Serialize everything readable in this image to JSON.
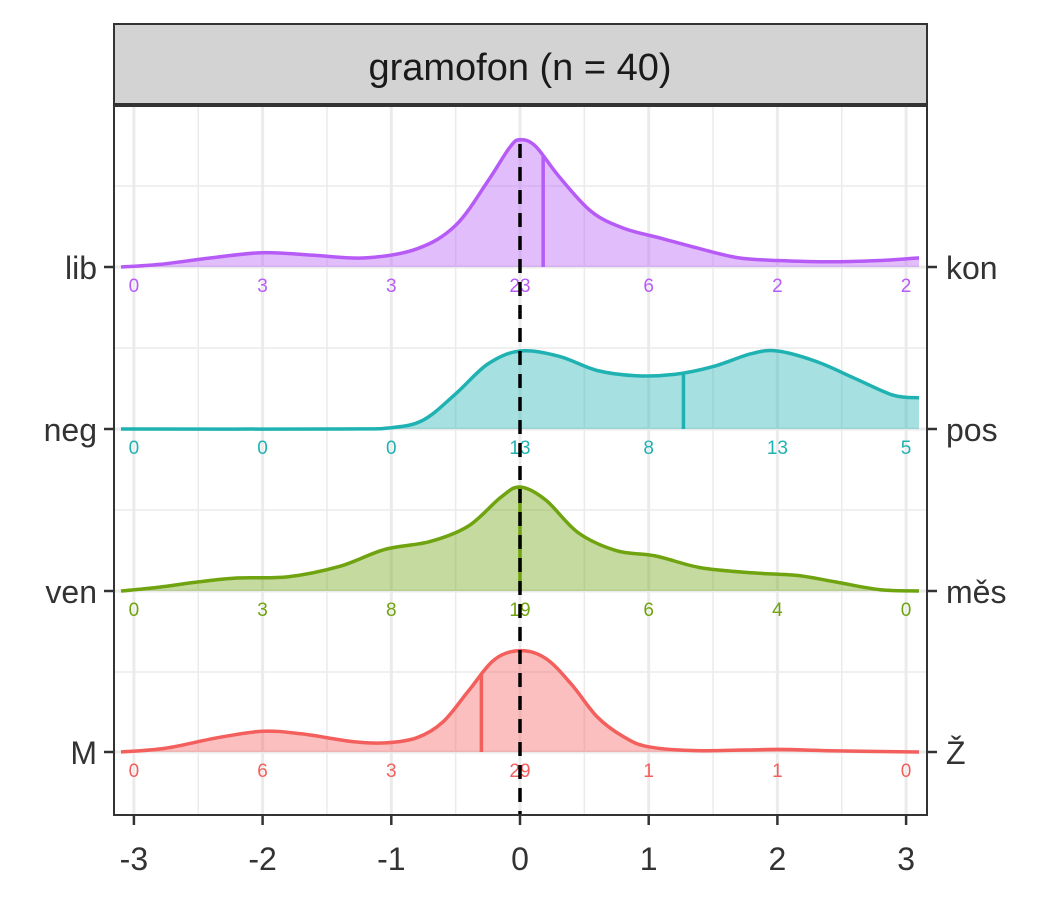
{
  "chart_data": {
    "type": "area",
    "title": "gramofon (n = 40)",
    "xlabel": "",
    "ylabel": "",
    "xlim": [
      -3.1,
      3.1
    ],
    "x_ticks": [
      "-3",
      "-2",
      "-1",
      "0",
      "1",
      "2",
      "3"
    ],
    "grid": true,
    "reference_line": 0,
    "series": [
      {
        "name_left": "lib",
        "name_right": "kon",
        "color": "#B75BF7",
        "count_labels": [
          "0",
          "3",
          "3",
          "23",
          "6",
          "2",
          "2"
        ],
        "median": 0.18,
        "density": [
          [
            -3.1,
            0.0
          ],
          [
            -2.8,
            0.02
          ],
          [
            -2.4,
            0.07
          ],
          [
            -2.0,
            0.11
          ],
          [
            -1.6,
            0.09
          ],
          [
            -1.2,
            0.07
          ],
          [
            -0.8,
            0.14
          ],
          [
            -0.5,
            0.32
          ],
          [
            -0.25,
            0.66
          ],
          [
            -0.08,
            0.92
          ],
          [
            0.0,
            0.98
          ],
          [
            0.12,
            0.93
          ],
          [
            0.3,
            0.7
          ],
          [
            0.55,
            0.43
          ],
          [
            0.8,
            0.3
          ],
          [
            1.1,
            0.22
          ],
          [
            1.4,
            0.14
          ],
          [
            1.7,
            0.07
          ],
          [
            2.0,
            0.05
          ],
          [
            2.4,
            0.04
          ],
          [
            2.8,
            0.05
          ],
          [
            3.1,
            0.07
          ]
        ]
      },
      {
        "name_left": "neg",
        "name_right": "pos",
        "color": "#20B2B2",
        "count_labels": [
          "0",
          "0",
          "0",
          "13",
          "8",
          "13",
          "5"
        ],
        "median": 1.27,
        "density": [
          [
            -3.1,
            0.0
          ],
          [
            -1.4,
            0.0
          ],
          [
            -1.0,
            0.01
          ],
          [
            -0.75,
            0.07
          ],
          [
            -0.5,
            0.27
          ],
          [
            -0.25,
            0.5
          ],
          [
            0.0,
            0.6
          ],
          [
            0.3,
            0.56
          ],
          [
            0.6,
            0.45
          ],
          [
            0.9,
            0.41
          ],
          [
            1.2,
            0.42
          ],
          [
            1.5,
            0.48
          ],
          [
            1.8,
            0.58
          ],
          [
            2.0,
            0.6
          ],
          [
            2.3,
            0.52
          ],
          [
            2.6,
            0.39
          ],
          [
            2.9,
            0.26
          ],
          [
            3.1,
            0.24
          ]
        ]
      },
      {
        "name_left": "ven",
        "name_right": "měs",
        "color": "#6FA30F",
        "count_labels": [
          "0",
          "3",
          "8",
          "19",
          "6",
          "4",
          "0"
        ],
        "median": 0.0,
        "density": [
          [
            -3.1,
            0.0
          ],
          [
            -2.8,
            0.03
          ],
          [
            -2.5,
            0.07
          ],
          [
            -2.2,
            0.1
          ],
          [
            -1.8,
            0.11
          ],
          [
            -1.4,
            0.19
          ],
          [
            -1.05,
            0.32
          ],
          [
            -0.7,
            0.38
          ],
          [
            -0.4,
            0.5
          ],
          [
            -0.15,
            0.72
          ],
          [
            0.0,
            0.8
          ],
          [
            0.2,
            0.7
          ],
          [
            0.45,
            0.45
          ],
          [
            0.75,
            0.31
          ],
          [
            1.05,
            0.27
          ],
          [
            1.4,
            0.18
          ],
          [
            1.8,
            0.14
          ],
          [
            2.15,
            0.12
          ],
          [
            2.45,
            0.07
          ],
          [
            2.8,
            0.01
          ],
          [
            3.1,
            0.0
          ]
        ]
      },
      {
        "name_left": "M",
        "name_right": "Ž",
        "color": "#F25F5C",
        "count_labels": [
          "0",
          "6",
          "3",
          "29",
          "1",
          "1",
          "0"
        ],
        "median": -0.3,
        "density": [
          [
            -3.1,
            0.0
          ],
          [
            -2.75,
            0.03
          ],
          [
            -2.35,
            0.11
          ],
          [
            -2.0,
            0.16
          ],
          [
            -1.7,
            0.14
          ],
          [
            -1.3,
            0.08
          ],
          [
            -1.05,
            0.07
          ],
          [
            -0.8,
            0.11
          ],
          [
            -0.6,
            0.23
          ],
          [
            -0.4,
            0.47
          ],
          [
            -0.2,
            0.71
          ],
          [
            0.0,
            0.78
          ],
          [
            0.2,
            0.72
          ],
          [
            0.4,
            0.52
          ],
          [
            0.6,
            0.27
          ],
          [
            0.8,
            0.12
          ],
          [
            1.0,
            0.04
          ],
          [
            1.4,
            0.01
          ],
          [
            2.0,
            0.02
          ],
          [
            2.4,
            0.01
          ],
          [
            3.1,
            0.0
          ]
        ]
      }
    ]
  }
}
